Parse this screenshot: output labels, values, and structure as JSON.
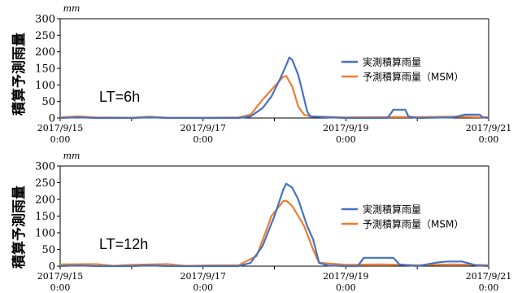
{
  "y_axis_title": "積算予測雨量",
  "colors": {
    "observed": "#4472C4",
    "forecast": "#ED7D31"
  },
  "chart_data": [
    {
      "type": "line",
      "unit_label": "mm",
      "lead_time_label": "LT=6h",
      "ylim": [
        0,
        300
      ],
      "y_ticks": [
        "0",
        "50",
        "100",
        "150",
        "200",
        "250",
        "300"
      ],
      "xlim": [
        "2017/9/15 0:00",
        "2017/9/21 0:00"
      ],
      "x_ticks": [
        {
          "date": "2017/9/15",
          "time": "0:00"
        },
        {
          "date": "2017/9/17",
          "time": "0:00"
        },
        {
          "date": "2017/9/19",
          "time": "0:00"
        },
        {
          "date": "2017/9/21",
          "time": "0:00"
        }
      ],
      "legend_position": "right",
      "series": [
        {
          "name": "実測積算雨量",
          "color_key": "observed",
          "points": [
            [
              "2017/9/15 0:00",
              0
            ],
            [
              "2017/9/15 6:00",
              2
            ],
            [
              "2017/9/15 12:00",
              0
            ],
            [
              "2017/9/16 0:00",
              0
            ],
            [
              "2017/9/16 6:00",
              2
            ],
            [
              "2017/9/16 12:00",
              0
            ],
            [
              "2017/9/17 0:00",
              0
            ],
            [
              "2017/9/17 12:00",
              0
            ],
            [
              "2017/9/17 16:00",
              5
            ],
            [
              "2017/9/17 20:00",
              30
            ],
            [
              "2017/9/17 23:00",
              65
            ],
            [
              "2017/9/18 2:00",
              120
            ],
            [
              "2017/9/18 4:00",
              160
            ],
            [
              "2017/9/18 5:00",
              183
            ],
            [
              "2017/9/18 6:00",
              175
            ],
            [
              "2017/9/18 8:00",
              130
            ],
            [
              "2017/9/18 9:00",
              95
            ],
            [
              "2017/9/18 11:00",
              20
            ],
            [
              "2017/9/18 12:00",
              5
            ],
            [
              "2017/9/18 18:00",
              2
            ],
            [
              "2017/9/19 0:00",
              0
            ],
            [
              "2017/9/19 14:00",
              0
            ],
            [
              "2017/9/19 16:00",
              25
            ],
            [
              "2017/9/19 20:00",
              25
            ],
            [
              "2017/9/19 21:00",
              5
            ],
            [
              "2017/9/20 0:00",
              0
            ],
            [
              "2017/9/20 12:00",
              2
            ],
            [
              "2017/9/20 16:00",
              10
            ],
            [
              "2017/9/20 21:00",
              10
            ],
            [
              "2017/9/20 22:00",
              2
            ],
            [
              "2017/9/21 0:00",
              0
            ]
          ]
        },
        {
          "name": "予測積算雨量（MSM）",
          "color_key": "forecast",
          "points": [
            [
              "2017/9/15 0:00",
              2
            ],
            [
              "2017/9/15 6:00",
              5
            ],
            [
              "2017/9/15 12:00",
              2
            ],
            [
              "2017/9/16 0:00",
              1
            ],
            [
              "2017/9/16 6:00",
              4
            ],
            [
              "2017/9/16 12:00",
              1
            ],
            [
              "2017/9/17 0:00",
              1
            ],
            [
              "2017/9/17 12:00",
              2
            ],
            [
              "2017/9/17 16:00",
              10
            ],
            [
              "2017/9/17 20:00",
              55
            ],
            [
              "2017/9/17 23:00",
              85
            ],
            [
              "2017/9/18 2:00",
              115
            ],
            [
              "2017/9/18 3:00",
              125
            ],
            [
              "2017/9/18 4:00",
              127
            ],
            [
              "2017/9/18 6:00",
              95
            ],
            [
              "2017/9/18 8:00",
              35
            ],
            [
              "2017/9/18 10:00",
              10
            ],
            [
              "2017/9/18 12:00",
              5
            ],
            [
              "2017/9/19 0:00",
              2
            ],
            [
              "2017/9/19 12:00",
              3
            ],
            [
              "2017/9/20 0:00",
              3
            ],
            [
              "2017/9/20 12:00",
              4
            ],
            [
              "2017/9/21 0:00",
              2
            ]
          ]
        }
      ]
    },
    {
      "type": "line",
      "unit_label": "mm",
      "lead_time_label": "LT=12h",
      "ylim": [
        0,
        300
      ],
      "y_ticks": [
        "0",
        "50",
        "100",
        "150",
        "200",
        "250",
        "300"
      ],
      "xlim": [
        "2017/9/15 0:00",
        "2017/9/21 0:00"
      ],
      "x_ticks": [
        {
          "date": "2017/9/15",
          "time": "0:00"
        },
        {
          "date": "2017/9/17",
          "time": "0:00"
        },
        {
          "date": "2017/9/19",
          "time": "0:00"
        },
        {
          "date": "2017/9/21",
          "time": "0:00"
        }
      ],
      "legend_position": "right",
      "series": [
        {
          "name": "実測積算雨量",
          "color_key": "observed",
          "points": [
            [
              "2017/9/15 0:00",
              0
            ],
            [
              "2017/9/15 6:00",
              2
            ],
            [
              "2017/9/15 12:00",
              0
            ],
            [
              "2017/9/16 0:00",
              0
            ],
            [
              "2017/9/16 6:00",
              2
            ],
            [
              "2017/9/16 12:00",
              0
            ],
            [
              "2017/9/17 0:00",
              0
            ],
            [
              "2017/9/17 12:00",
              0
            ],
            [
              "2017/9/17 16:00",
              10
            ],
            [
              "2017/9/17 20:00",
              60
            ],
            [
              "2017/9/18 0:00",
              150
            ],
            [
              "2017/9/18 3:00",
              230
            ],
            [
              "2017/9/18 4:00",
              247
            ],
            [
              "2017/9/18 6:00",
              235
            ],
            [
              "2017/9/18 8:00",
              200
            ],
            [
              "2017/9/18 11:00",
              120
            ],
            [
              "2017/9/18 13:00",
              80
            ],
            [
              "2017/9/18 15:00",
              10
            ],
            [
              "2017/9/18 18:00",
              2
            ],
            [
              "2017/9/19 0:00",
              0
            ],
            [
              "2017/9/19 4:00",
              0
            ],
            [
              "2017/9/19 6:00",
              25
            ],
            [
              "2017/9/19 16:00",
              25
            ],
            [
              "2017/9/19 18:00",
              5
            ],
            [
              "2017/9/20 0:00",
              0
            ],
            [
              "2017/9/20 6:00",
              10
            ],
            [
              "2017/9/20 10:00",
              14
            ],
            [
              "2017/9/20 15:00",
              14
            ],
            [
              "2017/9/20 20:00",
              2
            ],
            [
              "2017/9/21 0:00",
              0
            ]
          ]
        },
        {
          "name": "予測積算雨量（MSM）",
          "color_key": "forecast",
          "points": [
            [
              "2017/9/15 0:00",
              5
            ],
            [
              "2017/9/15 12:00",
              6
            ],
            [
              "2017/9/15 18:00",
              1
            ],
            [
              "2017/9/16 0:00",
              4
            ],
            [
              "2017/9/16 12:00",
              6
            ],
            [
              "2017/9/16 18:00",
              1
            ],
            [
              "2017/9/17 0:00",
              2
            ],
            [
              "2017/9/17 12:00",
              3
            ],
            [
              "2017/9/17 18:00",
              30
            ],
            [
              "2017/9/17 21:00",
              100
            ],
            [
              "2017/9/17 23:00",
              150
            ],
            [
              "2017/9/18 3:00",
              195
            ],
            [
              "2017/9/18 4:00",
              196
            ],
            [
              "2017/9/18 6:00",
              180
            ],
            [
              "2017/9/18 10:00",
              120
            ],
            [
              "2017/9/18 13:00",
              50
            ],
            [
              "2017/9/18 15:00",
              10
            ],
            [
              "2017/9/19 0:00",
              4
            ],
            [
              "2017/9/19 12:00",
              5
            ],
            [
              "2017/9/20 0:00",
              3
            ],
            [
              "2017/9/20 12:00",
              5
            ],
            [
              "2017/9/21 0:00",
              3
            ]
          ]
        }
      ]
    }
  ]
}
